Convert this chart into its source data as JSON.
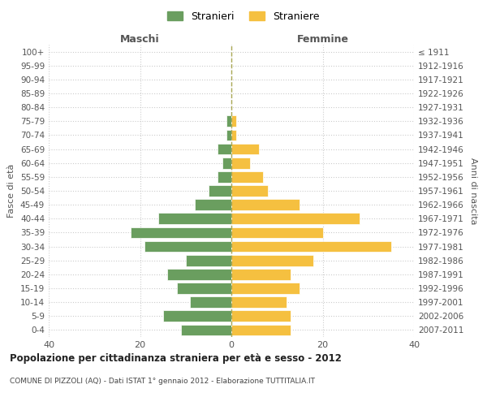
{
  "age_groups": [
    "0-4",
    "5-9",
    "10-14",
    "15-19",
    "20-24",
    "25-29",
    "30-34",
    "35-39",
    "40-44",
    "45-49",
    "50-54",
    "55-59",
    "60-64",
    "65-69",
    "70-74",
    "75-79",
    "80-84",
    "85-89",
    "90-94",
    "95-99",
    "100+"
  ],
  "birth_years": [
    "2007-2011",
    "2002-2006",
    "1997-2001",
    "1992-1996",
    "1987-1991",
    "1982-1986",
    "1977-1981",
    "1972-1976",
    "1967-1971",
    "1962-1966",
    "1957-1961",
    "1952-1956",
    "1947-1951",
    "1942-1946",
    "1937-1941",
    "1932-1936",
    "1927-1931",
    "1922-1926",
    "1917-1921",
    "1912-1916",
    "≤ 1911"
  ],
  "maschi": [
    11,
    15,
    9,
    12,
    14,
    10,
    19,
    22,
    16,
    8,
    5,
    3,
    2,
    3,
    1,
    1,
    0,
    0,
    0,
    0,
    0
  ],
  "femmine": [
    13,
    13,
    12,
    15,
    13,
    18,
    35,
    20,
    28,
    15,
    8,
    7,
    4,
    6,
    1,
    1,
    0,
    0,
    0,
    0,
    0
  ],
  "maschi_color": "#6a9e5f",
  "femmine_color": "#f5c040",
  "title": "Popolazione per cittadinanza straniera per età e sesso - 2012",
  "subtitle": "COMUNE DI PIZZOLI (AQ) - Dati ISTAT 1° gennaio 2012 - Elaborazione TUTTITALIA.IT",
  "xlabel_left": "Maschi",
  "xlabel_right": "Femmine",
  "ylabel_left": "Fasce di età",
  "ylabel_right": "Anni di nascita",
  "legend_maschi": "Stranieri",
  "legend_femmine": "Straniere",
  "xlim": 40,
  "background_color": "#ffffff",
  "grid_color": "#cccccc",
  "bar_edge_color": "#ffffff"
}
